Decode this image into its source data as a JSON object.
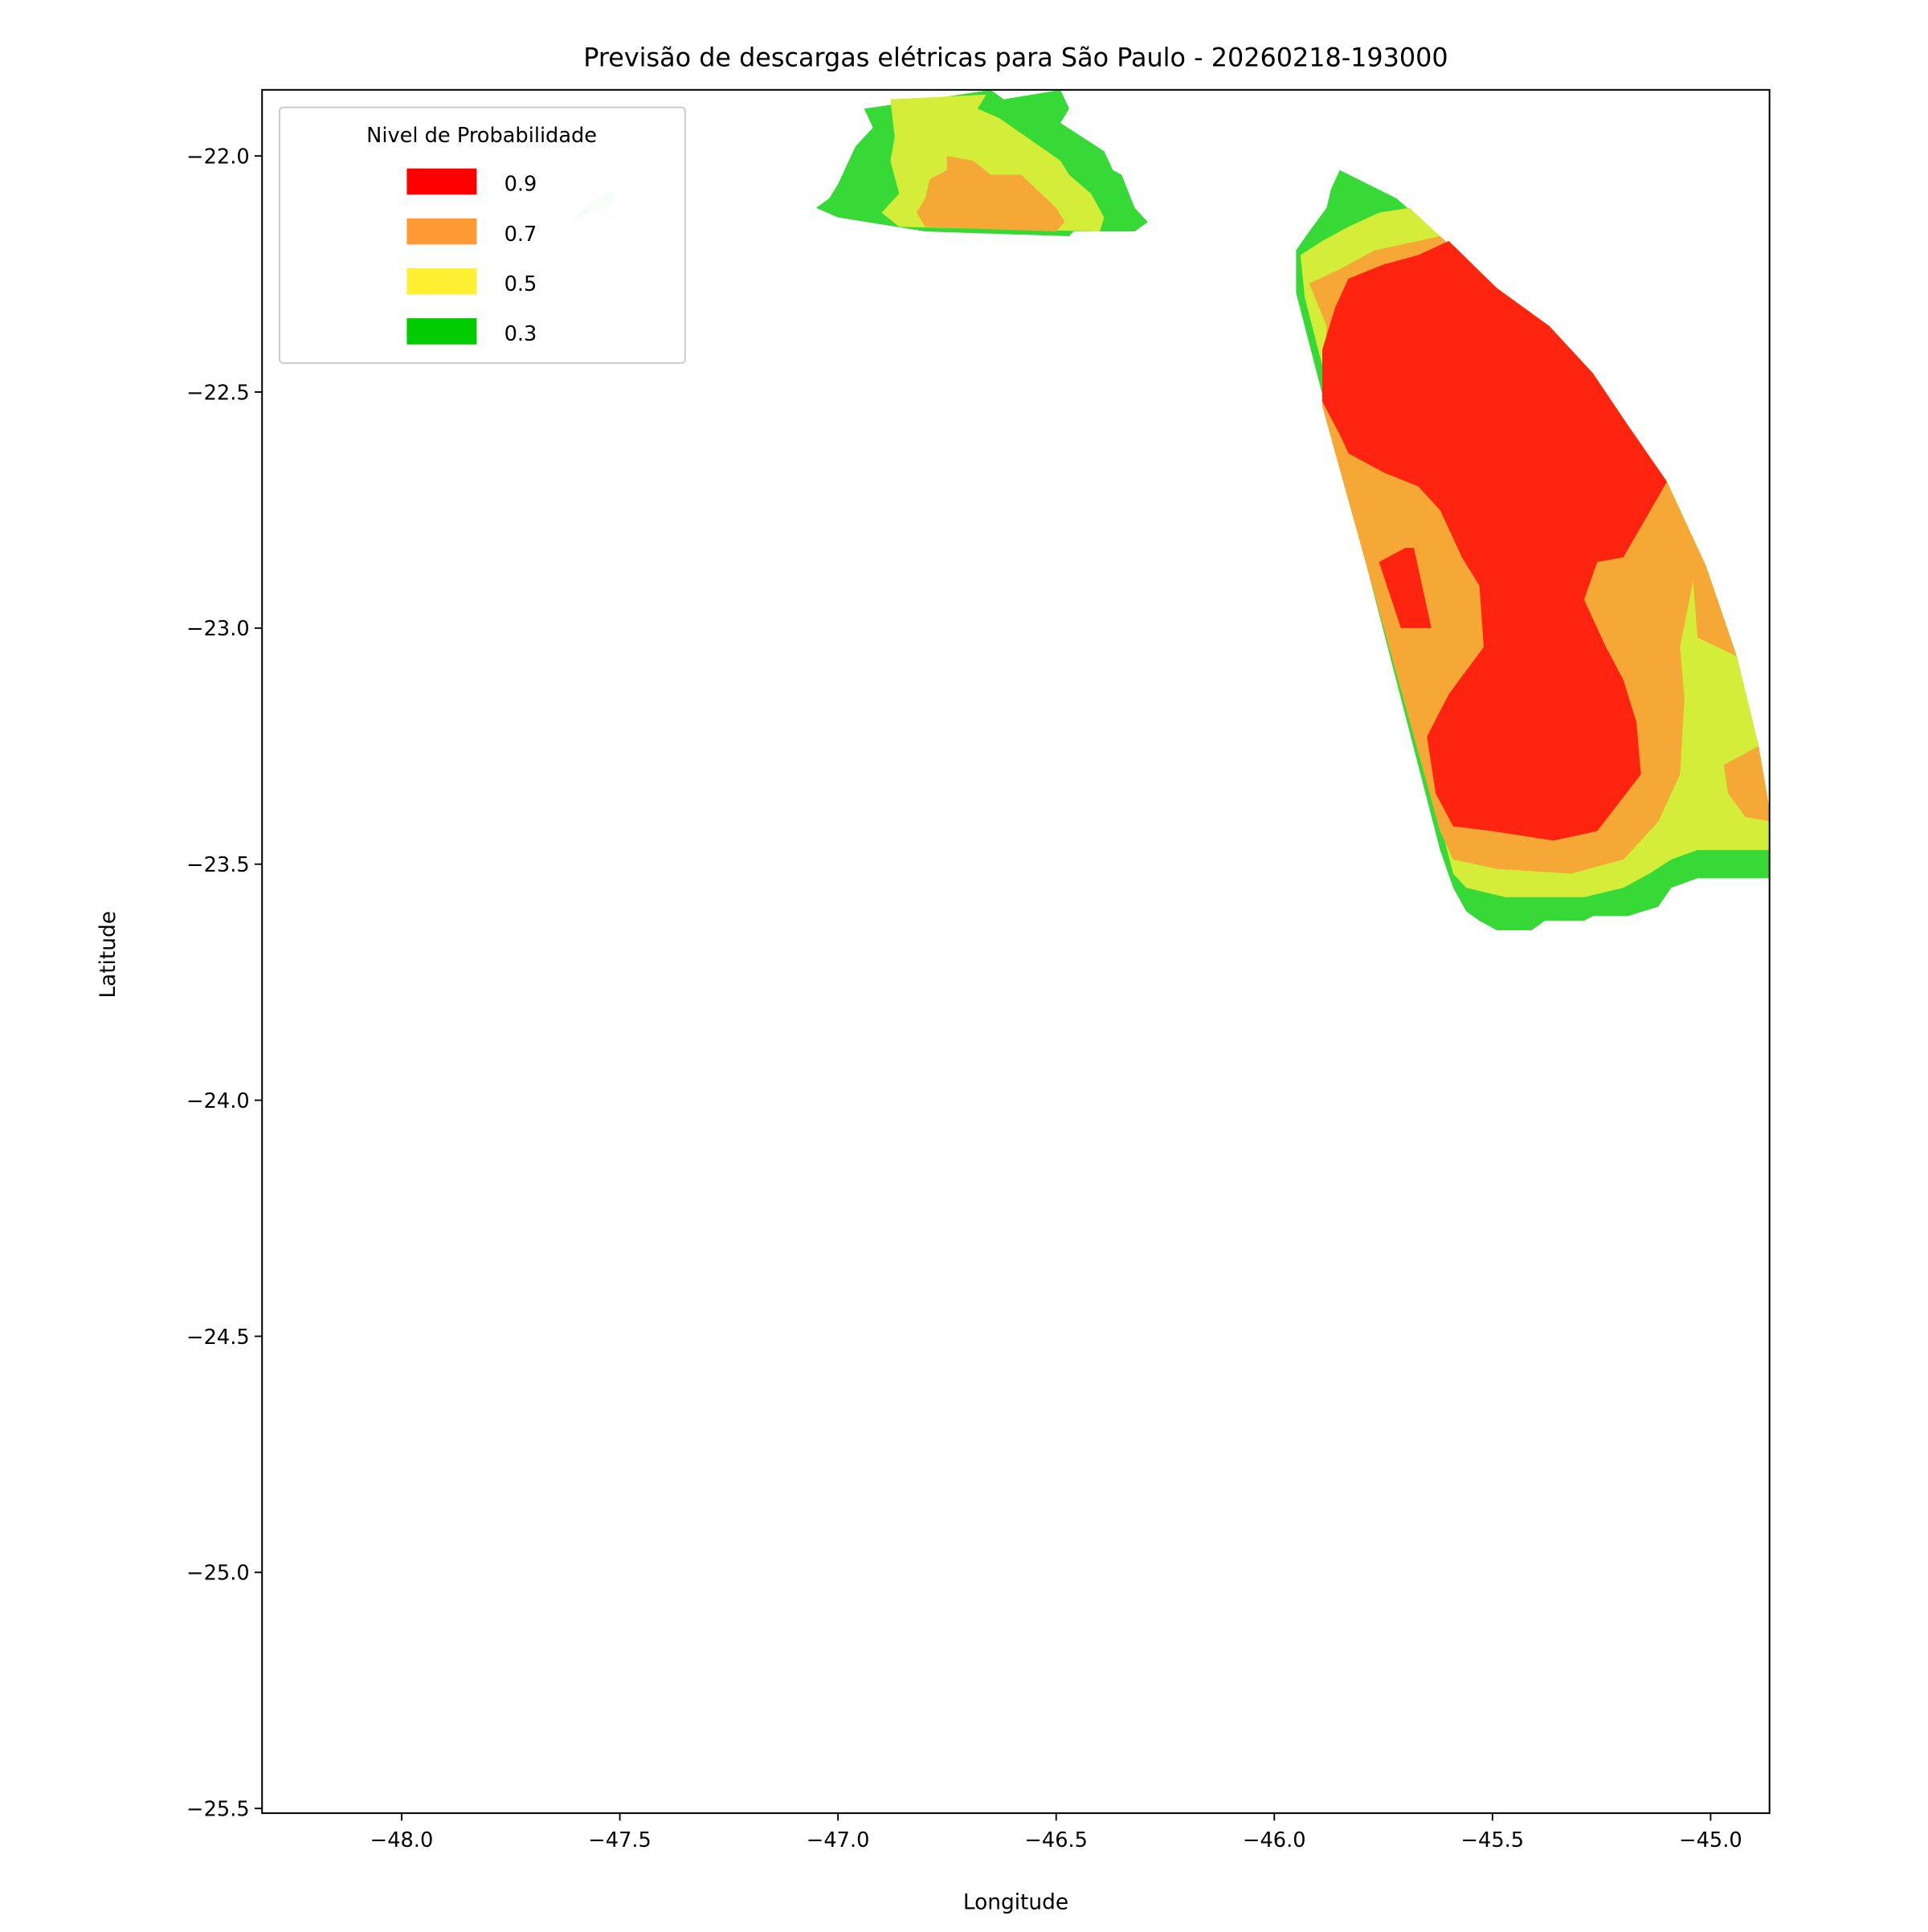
{
  "chart_data": {
    "type": "filled-contour-map",
    "title": "Previsão de descargas elétricas para São Paulo - 20260218-193000",
    "xlabel": "Longitude",
    "ylabel": "Latitude",
    "xlim": [
      -48.32,
      -44.865
    ],
    "ylim": [
      -25.51,
      -21.86
    ],
    "xticks": [
      -48.0,
      -47.5,
      -47.0,
      -46.5,
      -46.0,
      -45.5,
      -45.0
    ],
    "xtick_labels": [
      "−48.0",
      "−47.5",
      "−47.0",
      "−46.5",
      "−46.0",
      "−45.5",
      "−45.0"
    ],
    "yticks": [
      -22.0,
      -22.5,
      -23.0,
      -23.5,
      -24.0,
      -24.5,
      -25.0,
      -25.5
    ],
    "ytick_labels": [
      "−22.0",
      "−22.5",
      "−23.0",
      "−23.5",
      "−24.0",
      "−24.5",
      "−25.0",
      "−25.5"
    ],
    "grid": false,
    "legend": {
      "title": "Nivel de Probabilidade",
      "placement": "top-left",
      "entries": [
        {
          "label": "0.9",
          "color": "#ff0000"
        },
        {
          "label": "0.7",
          "color": "#ff9933"
        },
        {
          "label": "0.5",
          "color": "#fff033"
        },
        {
          "label": "0.3",
          "color": "#00cc00"
        }
      ]
    },
    "regions": [
      {
        "level": 0.3,
        "color": "#37d937",
        "points": [
          [
            -46.94,
            -21.9
          ],
          [
            -46.79,
            -21.88
          ],
          [
            -46.65,
            -21.86
          ],
          [
            -46.62,
            -21.88
          ],
          [
            -46.49,
            -21.86
          ],
          [
            -46.47,
            -21.9
          ],
          [
            -46.49,
            -21.93
          ],
          [
            -46.39,
            -21.99
          ],
          [
            -46.37,
            -22.03
          ],
          [
            -46.35,
            -22.04
          ],
          [
            -46.32,
            -22.11
          ],
          [
            -46.29,
            -22.14
          ],
          [
            -46.32,
            -22.16
          ],
          [
            -46.46,
            -22.16
          ],
          [
            -46.47,
            -22.17
          ],
          [
            -46.8,
            -22.16
          ],
          [
            -47.0,
            -22.13
          ],
          [
            -47.05,
            -22.11
          ],
          [
            -47.02,
            -22.09
          ],
          [
            -47.0,
            -22.06
          ],
          [
            -46.98,
            -22.02
          ],
          [
            -46.96,
            -21.98
          ],
          [
            -46.92,
            -21.94
          ]
        ]
      },
      {
        "level": 0.5,
        "color": "#d4ed38",
        "points": [
          [
            -46.88,
            -21.88
          ],
          [
            -46.66,
            -21.87
          ],
          [
            -46.68,
            -21.9
          ],
          [
            -46.63,
            -21.92
          ],
          [
            -46.49,
            -22.01
          ],
          [
            -46.47,
            -22.04
          ],
          [
            -46.42,
            -22.08
          ],
          [
            -46.39,
            -22.13
          ],
          [
            -46.4,
            -22.16
          ],
          [
            -46.86,
            -22.15
          ],
          [
            -46.9,
            -22.12
          ],
          [
            -46.86,
            -22.08
          ],
          [
            -46.88,
            -22.01
          ],
          [
            -46.87,
            -21.96
          ]
        ]
      },
      {
        "level": 0.7,
        "color": "#f5a836",
        "points": [
          [
            -46.75,
            -22.0
          ],
          [
            -46.69,
            -22.01
          ],
          [
            -46.65,
            -22.04
          ],
          [
            -46.58,
            -22.04
          ],
          [
            -46.5,
            -22.11
          ],
          [
            -46.48,
            -22.14
          ],
          [
            -46.5,
            -22.16
          ],
          [
            -46.8,
            -22.15
          ],
          [
            -46.82,
            -22.12
          ],
          [
            -46.8,
            -22.09
          ],
          [
            -46.79,
            -22.05
          ],
          [
            -46.75,
            -22.03
          ]
        ]
      },
      {
        "level": 0.1,
        "color": "#d6f5d6",
        "points": [
          [
            -47.61,
            -22.14
          ],
          [
            -47.57,
            -22.1
          ],
          [
            -47.51,
            -22.07
          ],
          [
            -47.52,
            -22.11
          ],
          [
            -47.55,
            -22.11
          ]
        ]
      },
      {
        "level": 0.3,
        "color": "#37d937",
        "points": [
          [
            -45.85,
            -22.03
          ],
          [
            -45.72,
            -22.09
          ],
          [
            -45.62,
            -22.17
          ],
          [
            -45.49,
            -22.28
          ],
          [
            -45.37,
            -22.36
          ],
          [
            -45.27,
            -22.46
          ],
          [
            -45.19,
            -22.57
          ],
          [
            -45.1,
            -22.69
          ],
          [
            -45.01,
            -22.87
          ],
          [
            -44.94,
            -23.06
          ],
          [
            -44.89,
            -23.25
          ],
          [
            -44.86,
            -23.41
          ],
          [
            -44.86,
            -23.53
          ],
          [
            -45.03,
            -23.53
          ],
          [
            -45.09,
            -23.55
          ],
          [
            -45.12,
            -23.59
          ],
          [
            -45.19,
            -23.61
          ],
          [
            -45.27,
            -23.61
          ],
          [
            -45.29,
            -23.62
          ],
          [
            -45.38,
            -23.62
          ],
          [
            -45.41,
            -23.64
          ],
          [
            -45.49,
            -23.64
          ],
          [
            -45.53,
            -23.62
          ],
          [
            -45.56,
            -23.6
          ],
          [
            -45.59,
            -23.55
          ],
          [
            -45.62,
            -23.47
          ],
          [
            -45.95,
            -22.29
          ],
          [
            -45.95,
            -22.2
          ],
          [
            -45.92,
            -22.16
          ],
          [
            -45.88,
            -22.11
          ],
          [
            -45.87,
            -22.07
          ]
        ]
      },
      {
        "level": 0.5,
        "color": "#d4ed38",
        "points": [
          [
            -45.94,
            -22.21
          ],
          [
            -45.89,
            -22.18
          ],
          [
            -45.83,
            -22.15
          ],
          [
            -45.76,
            -22.12
          ],
          [
            -45.69,
            -22.11
          ],
          [
            -45.62,
            -22.17
          ],
          [
            -45.49,
            -22.28
          ],
          [
            -45.37,
            -22.36
          ],
          [
            -45.27,
            -22.46
          ],
          [
            -45.19,
            -22.57
          ],
          [
            -45.1,
            -22.69
          ],
          [
            -45.01,
            -22.87
          ],
          [
            -44.94,
            -23.06
          ],
          [
            -44.89,
            -23.25
          ],
          [
            -44.86,
            -23.41
          ],
          [
            -44.86,
            -23.47
          ],
          [
            -45.03,
            -23.47
          ],
          [
            -45.09,
            -23.49
          ],
          [
            -45.14,
            -23.52
          ],
          [
            -45.2,
            -23.55
          ],
          [
            -45.29,
            -23.57
          ],
          [
            -45.4,
            -23.57
          ],
          [
            -45.47,
            -23.57
          ],
          [
            -45.56,
            -23.55
          ],
          [
            -45.59,
            -23.52
          ],
          [
            -45.93,
            -22.3
          ]
        ]
      },
      {
        "level": 0.7,
        "color": "#f5a836",
        "points": [
          [
            -45.92,
            -22.27
          ],
          [
            -45.85,
            -22.24
          ],
          [
            -45.77,
            -22.2
          ],
          [
            -45.67,
            -22.18
          ],
          [
            -45.62,
            -22.17
          ],
          [
            -45.49,
            -22.28
          ],
          [
            -45.37,
            -22.36
          ],
          [
            -45.27,
            -22.46
          ],
          [
            -45.19,
            -22.57
          ],
          [
            -45.1,
            -22.69
          ],
          [
            -45.01,
            -22.87
          ],
          [
            -44.94,
            -23.06
          ],
          [
            -45.03,
            -23.02
          ],
          [
            -45.04,
            -22.9
          ],
          [
            -45.07,
            -23.04
          ],
          [
            -45.06,
            -23.15
          ],
          [
            -45.07,
            -23.31
          ],
          [
            -45.12,
            -23.41
          ],
          [
            -45.2,
            -23.49
          ],
          [
            -45.32,
            -23.52
          ],
          [
            -45.49,
            -23.51
          ],
          [
            -45.59,
            -23.49
          ],
          [
            -45.62,
            -23.43
          ],
          [
            -45.89,
            -22.53
          ],
          [
            -45.88,
            -22.36
          ]
        ]
      },
      {
        "level": 0.7,
        "color": "#f5a836",
        "points": [
          [
            -44.97,
            -23.29
          ],
          [
            -44.89,
            -23.25
          ],
          [
            -44.86,
            -23.41
          ],
          [
            -44.92,
            -23.4
          ],
          [
            -44.96,
            -23.35
          ]
        ]
      },
      {
        "level": 0.9,
        "color": "#ff2410",
        "points": [
          [
            -45.6,
            -22.18
          ],
          [
            -45.49,
            -22.28
          ],
          [
            -45.37,
            -22.36
          ],
          [
            -45.27,
            -22.46
          ],
          [
            -45.19,
            -22.57
          ],
          [
            -45.1,
            -22.69
          ],
          [
            -45.2,
            -22.85
          ],
          [
            -45.26,
            -22.86
          ],
          [
            -45.29,
            -22.94
          ],
          [
            -45.24,
            -23.04
          ],
          [
            -45.2,
            -23.11
          ],
          [
            -45.17,
            -23.2
          ],
          [
            -45.16,
            -23.31
          ],
          [
            -45.26,
            -23.43
          ],
          [
            -45.36,
            -23.45
          ],
          [
            -45.5,
            -23.43
          ],
          [
            -45.59,
            -23.42
          ],
          [
            -45.63,
            -23.35
          ],
          [
            -45.65,
            -23.23
          ],
          [
            -45.6,
            -23.14
          ],
          [
            -45.52,
            -23.04
          ],
          [
            -45.53,
            -22.91
          ],
          [
            -45.57,
            -22.85
          ],
          [
            -45.62,
            -22.75
          ],
          [
            -45.67,
            -22.7
          ],
          [
            -45.75,
            -22.67
          ],
          [
            -45.83,
            -22.63
          ],
          [
            -45.85,
            -22.59
          ],
          [
            -45.89,
            -22.52
          ],
          [
            -45.89,
            -22.41
          ],
          [
            -45.86,
            -22.32
          ],
          [
            -45.83,
            -22.26
          ],
          [
            -45.75,
            -22.23
          ],
          [
            -45.67,
            -22.21
          ]
        ]
      },
      {
        "level": 0.9,
        "color": "#ff2410",
        "points": [
          [
            -45.76,
            -22.86
          ],
          [
            -45.7,
            -22.83
          ],
          [
            -45.68,
            -22.83
          ],
          [
            -45.64,
            -23.0
          ],
          [
            -45.71,
            -23.0
          ]
        ]
      }
    ]
  }
}
